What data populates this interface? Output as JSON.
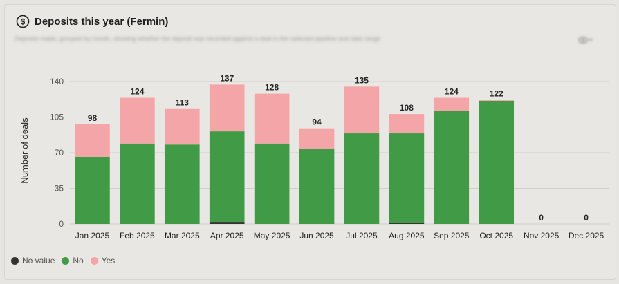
{
  "header": {
    "title": "Deposits this year (Fermin)",
    "subtitle": "Deposits made, grouped by month, showing whether the deposit was recorded against a deal in the selected pipeline and date range",
    "icons": {
      "title": "dollar-circle-icon",
      "visibility": "eye-icon"
    }
  },
  "colors": {
    "no_value": "#333333",
    "no": "#419b46",
    "yes": "#f4a5a7",
    "grid": "#d0cfca",
    "text": "#222222",
    "axis_text": "#555555"
  },
  "chart_data": {
    "type": "bar",
    "stacked": true,
    "title": "Deposits this year (Fermin)",
    "xlabel": "",
    "ylabel": "Number of deals",
    "ylim": [
      0,
      140
    ],
    "yticks": [
      0,
      35,
      70,
      105,
      140
    ],
    "grid": true,
    "legend_position": "bottom-left",
    "categories": [
      "Jan 2025",
      "Feb 2025",
      "Mar 2025",
      "Apr 2025",
      "May 2025",
      "Jun 2025",
      "Jul 2025",
      "Aug 2025",
      "Sep 2025",
      "Oct 2025",
      "Nov 2025",
      "Dec 2025"
    ],
    "series": [
      {
        "name": "No value",
        "color": "#333333",
        "values": [
          0,
          0,
          0,
          2,
          0,
          0,
          0,
          1,
          0,
          0,
          0,
          0
        ]
      },
      {
        "name": "No",
        "color": "#419b46",
        "values": [
          66,
          79,
          78,
          89,
          79,
          74,
          89,
          88,
          111,
          121,
          0,
          0
        ]
      },
      {
        "name": "Yes",
        "color": "#f4a5a7",
        "values": [
          32,
          45,
          35,
          46,
          49,
          20,
          46,
          19,
          13,
          1,
          0,
          0
        ]
      }
    ],
    "totals": [
      98,
      124,
      113,
      137,
      128,
      94,
      135,
      108,
      124,
      122,
      0,
      0
    ]
  },
  "legend": [
    {
      "label": "No value",
      "color": "#333333"
    },
    {
      "label": "No",
      "color": "#419b46"
    },
    {
      "label": "Yes",
      "color": "#f4a5a7"
    }
  ]
}
